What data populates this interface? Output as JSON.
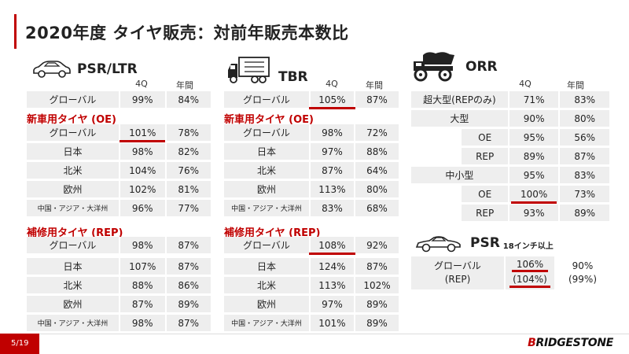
{
  "title": "2020年度 タイヤ販売：対前年販売本数比",
  "page_number": "5/19",
  "logo": "BRIDGESTONE",
  "colors": {
    "accent": "#c00000",
    "cell_bg": "#eeeeee"
  },
  "psr": {
    "label": "PSR/LTR",
    "icon": "car-icon",
    "col_4q": "4Q",
    "col_year": "年間",
    "global": {
      "label": "グローバル",
      "q4": "99%",
      "year": "84%"
    },
    "oe_header": "新車用タイヤ (OE)",
    "oe_rows": [
      {
        "label": "グローバル",
        "q4": "101%",
        "year": "78%"
      },
      {
        "label": "日本",
        "q4": "98%",
        "year": "82%"
      },
      {
        "label": "北米",
        "q4": "104%",
        "year": "76%"
      },
      {
        "label": "欧州",
        "q4": "102%",
        "year": "81%"
      },
      {
        "label": "中国・アジア・大洋州",
        "q4": "96%",
        "year": "77%"
      }
    ],
    "rep_header": "補修用タイヤ (REP)",
    "rep_rows": [
      {
        "label": "グローバル",
        "q4": "98%",
        "year": "87%"
      },
      {
        "label": "日本",
        "q4": "107%",
        "year": "87%"
      },
      {
        "label": "北米",
        "q4": "88%",
        "year": "86%"
      },
      {
        "label": "欧州",
        "q4": "87%",
        "year": "89%"
      },
      {
        "label": "中国・アジア・大洋州",
        "q4": "98%",
        "year": "87%"
      }
    ]
  },
  "tbr": {
    "label": "TBR",
    "icon": "truck-icon",
    "col_4q": "4Q",
    "col_year": "年間",
    "global": {
      "label": "グローバル",
      "q4": "105%",
      "year": "87%"
    },
    "oe_header": "新車用タイヤ (OE)",
    "oe_rows": [
      {
        "label": "グローバル",
        "q4": "98%",
        "year": "72%"
      },
      {
        "label": "日本",
        "q4": "97%",
        "year": "88%"
      },
      {
        "label": "北米",
        "q4": "87%",
        "year": "64%"
      },
      {
        "label": "欧州",
        "q4": "113%",
        "year": "80%"
      },
      {
        "label": "中国・アジア・大洋州",
        "q4": "83%",
        "year": "68%"
      }
    ],
    "rep_header": "補修用タイヤ (REP)",
    "rep_rows": [
      {
        "label": "グローバル",
        "q4": "108%",
        "year": "92%"
      },
      {
        "label": "日本",
        "q4": "124%",
        "year": "87%"
      },
      {
        "label": "北米",
        "q4": "113%",
        "year": "102%"
      },
      {
        "label": "欧州",
        "q4": "97%",
        "year": "89%"
      },
      {
        "label": "中国・アジア・大洋州",
        "q4": "101%",
        "year": "89%"
      }
    ]
  },
  "orr": {
    "label": "ORR",
    "icon": "dump-truck-icon",
    "col_4q": "4Q",
    "col_year": "年間",
    "rows": [
      {
        "label": "超大型(REPのみ)",
        "q4": "71%",
        "year": "83%"
      },
      {
        "label": "大型",
        "q4": "90%",
        "year": "80%"
      },
      {
        "label": "OE",
        "q4": "95%",
        "year": "56%"
      },
      {
        "label": "REP",
        "q4": "89%",
        "year": "87%"
      },
      {
        "label": "中小型",
        "q4": "95%",
        "year": "83%"
      },
      {
        "label": "OE",
        "q4": "100%",
        "year": "73%"
      },
      {
        "label": "REP",
        "q4": "93%",
        "year": "89%"
      }
    ]
  },
  "psr18": {
    "label": "PSR",
    "sublabel": "18インチ以上",
    "icon": "sports-car-icon",
    "row_label_1": "グローバル",
    "row_label_2": "(REP)",
    "q4_1": "106%",
    "q4_2": "(104%)",
    "year_1": "90%",
    "year_2": "(99%)"
  }
}
